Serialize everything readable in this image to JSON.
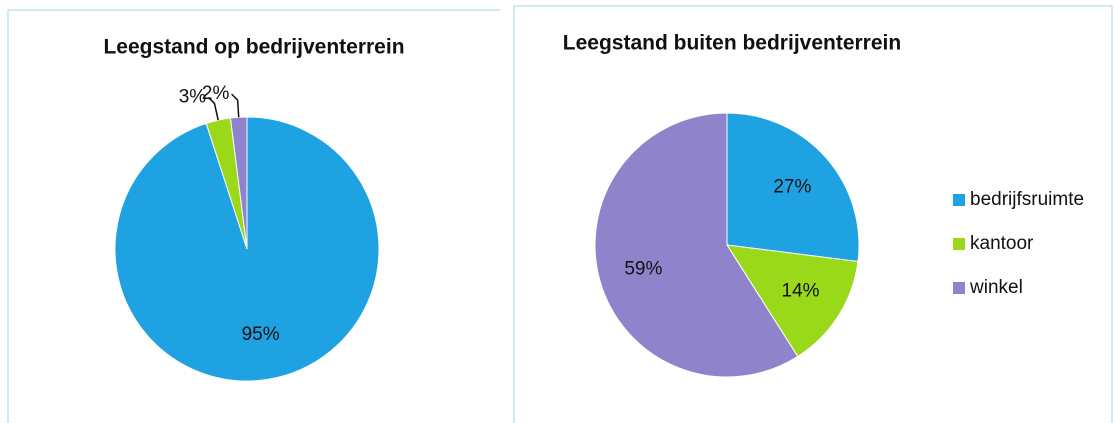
{
  "chart_data": [
    {
      "type": "pie",
      "title": "Leegstand op bedrijventerrein",
      "values": [
        95,
        3,
        2
      ],
      "colors": [
        "#1ea2e2",
        "#9ad81a",
        "#8f83cc"
      ]
    },
    {
      "type": "pie",
      "title": "Leegstand buiten bedrijventerrein",
      "categories": [
        "bedrijfsruimte",
        "kantoor",
        "winkel"
      ],
      "values": [
        27,
        14,
        59
      ],
      "colors": [
        "#1ea2e2",
        "#9ad81a",
        "#8f83cc"
      ],
      "legend": "right"
    }
  ]
}
